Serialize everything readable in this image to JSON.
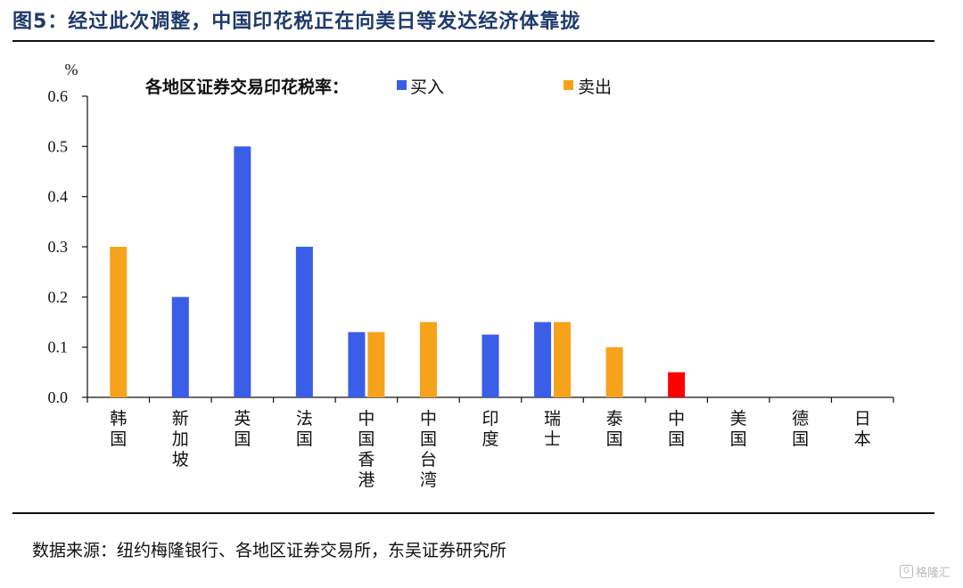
{
  "figure": {
    "title": "图5：经过此次调整，中国印花税正在向美日等发达经济体靠拢",
    "source": "数据来源：纽约梅隆银行、各地区证券交易所，东吴证券研究所",
    "watermark": "格隆汇"
  },
  "chart_data": {
    "type": "bar",
    "title": "",
    "legend_title": "各地区证券交易印花税率：",
    "ylabel": "%",
    "xlabel": "",
    "ylim": [
      0,
      0.6
    ],
    "yticks": [
      "0.0",
      "0.1",
      "0.2",
      "0.3",
      "0.4",
      "0.5",
      "0.6"
    ],
    "grid": false,
    "legend_position": "top",
    "categories": [
      "韩国",
      "新加坡",
      "英国",
      "法国",
      "中国香港",
      "中国台湾",
      "印度",
      "瑞士",
      "泰国",
      "中国",
      "美国",
      "德国",
      "日本"
    ],
    "series": [
      {
        "name": "买入",
        "color": "#3a5ee8",
        "values": [
          0,
          0.2,
          0.5,
          0.3,
          0.13,
          0,
          0.125,
          0.15,
          0,
          0.05,
          0,
          0,
          0
        ]
      },
      {
        "name": "卖出",
        "color": "#f7a21b",
        "values": [
          0.3,
          0,
          0,
          0,
          0.13,
          0.15,
          0,
          0.15,
          0.1,
          0,
          0,
          0,
          0
        ]
      }
    ],
    "highlight": {
      "category": "中国",
      "color": "#ff0000"
    }
  },
  "colors": {
    "title": "#1f3a6b",
    "buy": "#3a5ee8",
    "sell": "#f7a21b",
    "highlight": "#ff0000"
  }
}
